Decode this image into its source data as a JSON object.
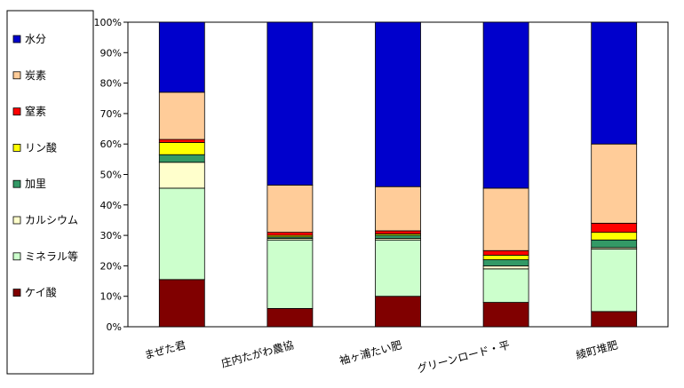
{
  "chart_data": {
    "type": "bar",
    "stacked": true,
    "percent": true,
    "categories": [
      "まぜた君",
      "庄内たがわ農協",
      "袖ヶ浦たい肥",
      "グリーンロード・平",
      "綾町堆肥"
    ],
    "ylim": [
      0,
      100
    ],
    "ytick_labels": [
      "0%",
      "10%",
      "20%",
      "30%",
      "40%",
      "50%",
      "60%",
      "70%",
      "80%",
      "90%",
      "100%"
    ],
    "grid": false,
    "legend_position": "left",
    "series": [
      {
        "name": "ケイ酸",
        "color": "#800000",
        "values": [
          15.5,
          6.0,
          10.0,
          8.0,
          5.0
        ]
      },
      {
        "name": "ミネラル等",
        "color": "#CCFFCC",
        "values": [
          30.0,
          22.5,
          18.5,
          11.0,
          20.5
        ]
      },
      {
        "name": "カルシウム",
        "color": "#FFFFCC",
        "values": [
          8.5,
          0.5,
          0.5,
          1.0,
          0.5
        ]
      },
      {
        "name": "加里",
        "color": "#339966",
        "values": [
          2.5,
          0.5,
          1.0,
          2.0,
          2.5
        ]
      },
      {
        "name": "リン酸",
        "color": "#FFFF00",
        "values": [
          4.0,
          0.5,
          0.5,
          1.5,
          2.5
        ]
      },
      {
        "name": "窒素",
        "color": "#FF0000",
        "values": [
          1.0,
          1.0,
          1.0,
          1.5,
          3.0
        ]
      },
      {
        "name": "炭素",
        "color": "#FFCC99",
        "values": [
          15.5,
          15.5,
          14.5,
          20.5,
          26.0
        ]
      },
      {
        "name": "水分",
        "color": "#0000CC",
        "values": [
          23.0,
          53.5,
          54.0,
          54.5,
          40.0
        ]
      }
    ]
  }
}
